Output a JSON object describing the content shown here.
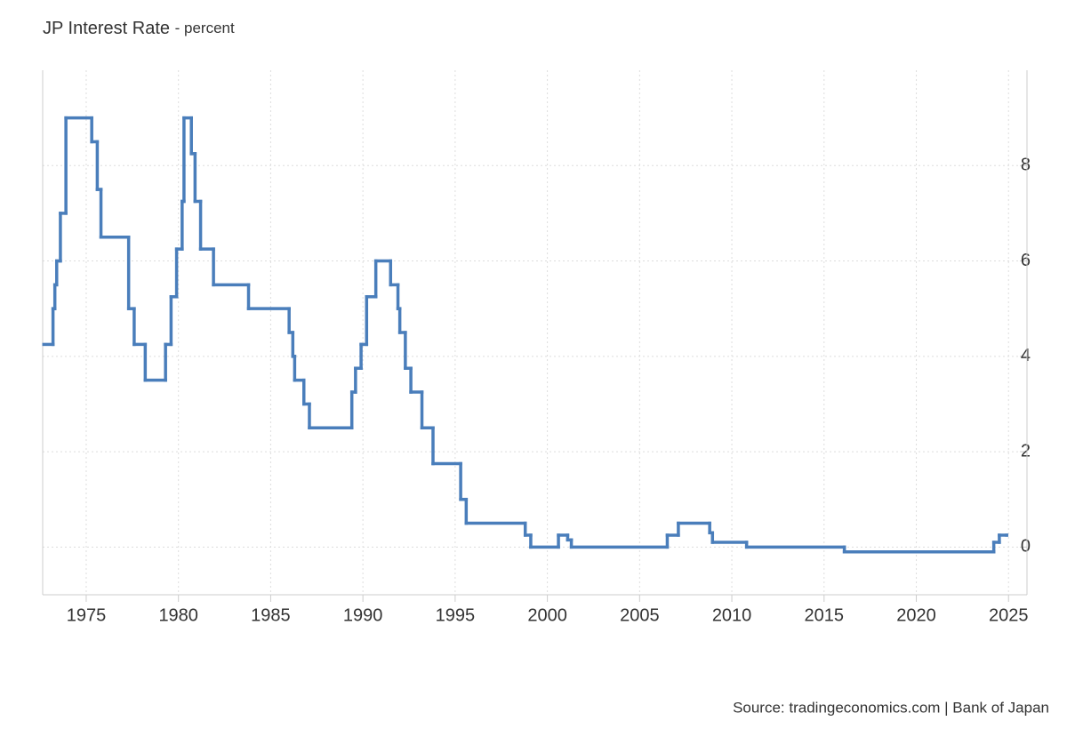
{
  "chart_data": {
    "type": "step",
    "title": "JP Interest Rate",
    "subtitle": "- percent",
    "source": "Source: tradingeconomics.com | Bank of Japan",
    "color": "#4a7ebb",
    "grid": true,
    "xlim": [
      1972.64,
      2026.0
    ],
    "xticks": [
      1975,
      1980,
      1985,
      1990,
      1995,
      2000,
      2005,
      2010,
      2015,
      2020,
      2025
    ],
    "ylim": [
      -1,
      10
    ],
    "yticks": [
      0,
      2,
      4,
      6,
      8
    ],
    "x": [
      1972.7,
      1973.2,
      1973.3,
      1973.4,
      1973.6,
      1973.9,
      1975.3,
      1975.6,
      1975.8,
      1977.3,
      1977.6,
      1978.2,
      1979.3,
      1979.6,
      1979.9,
      1980.2,
      1980.3,
      1980.7,
      1980.9,
      1981.2,
      1981.9,
      1983.8,
      1986.0,
      1986.2,
      1986.3,
      1986.8,
      1987.1,
      1989.4,
      1989.6,
      1989.9,
      1990.2,
      1990.7,
      1991.5,
      1991.9,
      1992.0,
      1992.3,
      1992.6,
      1993.2,
      1993.8,
      1995.3,
      1995.6,
      1998.8,
      1999.1,
      2000.6,
      2001.1,
      2001.3,
      2006.5,
      2007.1,
      2008.8,
      2008.95,
      2010.8,
      2016.1,
      2024.2,
      2024.5,
      2024.9
    ],
    "values": [
      4.25,
      5.0,
      5.5,
      6.0,
      7.0,
      9.0,
      8.5,
      7.5,
      6.5,
      5.0,
      4.25,
      3.5,
      4.25,
      5.25,
      6.25,
      7.25,
      9.0,
      8.25,
      7.25,
      6.25,
      5.5,
      5.0,
      4.5,
      4.0,
      3.5,
      3.0,
      2.5,
      3.25,
      3.75,
      4.25,
      5.25,
      6.0,
      5.5,
      5.0,
      4.5,
      3.75,
      3.25,
      2.5,
      1.75,
      1.0,
      0.5,
      0.25,
      0,
      0.25,
      0.15,
      0,
      0.25,
      0.5,
      0.3,
      0.1,
      0,
      -0.1,
      0.1,
      0.25,
      0.25
    ]
  }
}
